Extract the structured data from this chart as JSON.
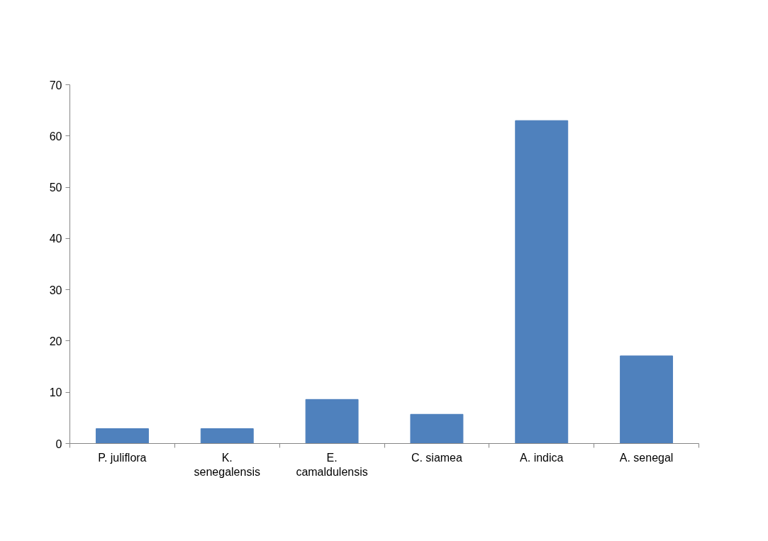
{
  "chart_data": {
    "type": "bar",
    "categories": [
      "P. juliflora",
      "K. senegalensis",
      "E. camaldulensis",
      "C. siamea",
      "A. indica",
      "A. senegal"
    ],
    "values": [
      2.9,
      2.9,
      8.6,
      5.7,
      63.0,
      17.1
    ],
    "color": "#4f81bd",
    "ylim": [
      0,
      70
    ],
    "yticks": [
      0,
      10,
      20,
      30,
      40,
      50,
      60,
      70
    ],
    "grid": false
  }
}
